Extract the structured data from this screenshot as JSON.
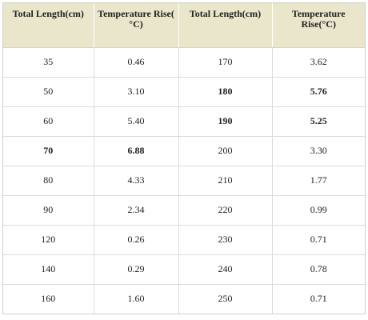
{
  "headers": [
    "Total Length(cm)",
    "Temperature Rise( °C)",
    "Total Length(cm)",
    "Temperature Rise(°C)"
  ],
  "rows": [
    {
      "cells": [
        "35",
        "0.46",
        "170",
        "3.62"
      ],
      "bold": [
        false,
        false,
        false,
        false
      ]
    },
    {
      "cells": [
        "50",
        "3.10",
        "180",
        "5.76"
      ],
      "bold": [
        false,
        false,
        true,
        true
      ]
    },
    {
      "cells": [
        "60",
        "5.40",
        "190",
        "5.25"
      ],
      "bold": [
        false,
        false,
        true,
        true
      ]
    },
    {
      "cells": [
        "70",
        "6.88",
        "200",
        "3.30"
      ],
      "bold": [
        true,
        true,
        false,
        false
      ]
    },
    {
      "cells": [
        "80",
        "4.33",
        "210",
        "1.77"
      ],
      "bold": [
        false,
        false,
        false,
        false
      ]
    },
    {
      "cells": [
        "90",
        "2.34",
        "220",
        "0.99"
      ],
      "bold": [
        false,
        false,
        false,
        false
      ]
    },
    {
      "cells": [
        "120",
        "0.26",
        "230",
        "0.71"
      ],
      "bold": [
        false,
        false,
        false,
        false
      ]
    },
    {
      "cells": [
        "140",
        "0.29",
        "240",
        "0.78"
      ],
      "bold": [
        false,
        false,
        false,
        false
      ]
    },
    {
      "cells": [
        "160",
        "1.60",
        "250",
        "0.71"
      ],
      "bold": [
        false,
        false,
        false,
        false
      ]
    }
  ]
}
